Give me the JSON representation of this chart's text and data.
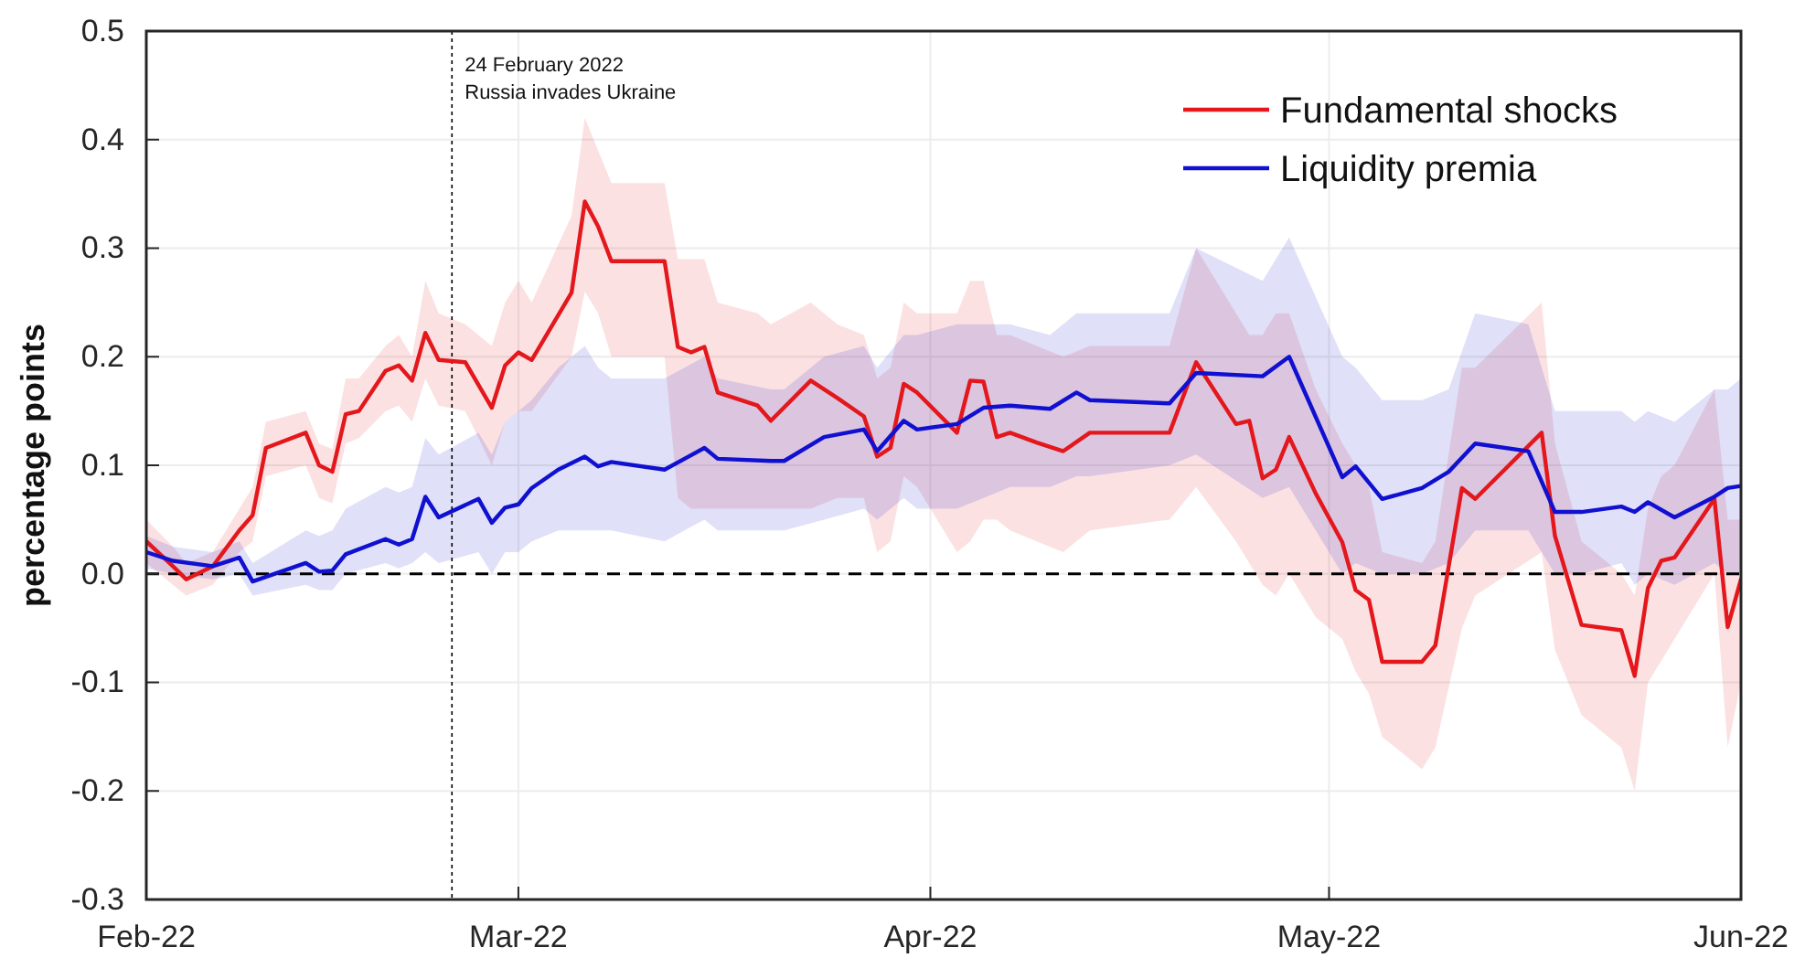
{
  "chart_data": {
    "type": "line",
    "ylabel": "percentage points",
    "xlim": [
      "2022-02-01",
      "2022-06-01"
    ],
    "xticks": [
      {
        "value": "2022-02-01",
        "label": "Feb-22"
      },
      {
        "value": "2022-03-01",
        "label": "Mar-22"
      },
      {
        "value": "2022-04-01",
        "label": "Apr-22"
      },
      {
        "value": "2022-05-01",
        "label": "May-22"
      },
      {
        "value": "2022-06-01",
        "label": "Jun-22"
      }
    ],
    "ylim": [
      -0.3,
      0.5
    ],
    "yticks": [
      {
        "value": -0.3,
        "label": "-0.3"
      },
      {
        "value": -0.2,
        "label": "-0.2"
      },
      {
        "value": -0.1,
        "label": "-0.1"
      },
      {
        "value": 0,
        "label": "0.0"
      },
      {
        "value": 0.1,
        "label": "0.1"
      },
      {
        "value": 0.2,
        "label": "0.2"
      },
      {
        "value": 0.3,
        "label": "0.3"
      },
      {
        "value": 0.4,
        "label": "0.4"
      },
      {
        "value": 0.5,
        "label": "0.5"
      }
    ],
    "grid": true,
    "legend": "top right",
    "line_style": "solid",
    "ref_lines": [
      {
        "axis": "y",
        "value": 0,
        "color": "#000000",
        "line_style": "dashed"
      },
      {
        "axis": "x",
        "value": "2022-02-24",
        "label": "24 February 2022\nRussia invades Ukraine",
        "color": "#000000",
        "line_style": "dotted"
      }
    ],
    "series": [
      {
        "name": "Fundamental shocks",
        "color": "#e3171c",
        "x": [
          "2022-02-01",
          "2022-02-03",
          "2022-02-04",
          "2022-02-06",
          "2022-02-08",
          "2022-02-09",
          "2022-02-10",
          "2022-02-13",
          "2022-02-14",
          "2022-02-15",
          "2022-02-16",
          "2022-02-17",
          "2022-02-19",
          "2022-02-20",
          "2022-02-21",
          "2022-02-22",
          "2022-02-23",
          "2022-02-25",
          "2022-02-27",
          "2022-02-28",
          "2022-03-01",
          "2022-03-02",
          "2022-03-05",
          "2022-03-06",
          "2022-03-07",
          "2022-03-08",
          "2022-03-12",
          "2022-03-13",
          "2022-03-14",
          "2022-03-15",
          "2022-03-16",
          "2022-03-19",
          "2022-03-20",
          "2022-03-23",
          "2022-03-25",
          "2022-03-27",
          "2022-03-28",
          "2022-03-29",
          "2022-03-30",
          "2022-03-31",
          "2022-04-03",
          "2022-04-04",
          "2022-04-05",
          "2022-04-06",
          "2022-04-07",
          "2022-04-09",
          "2022-04-11",
          "2022-04-13",
          "2022-04-19",
          "2022-04-21",
          "2022-04-24",
          "2022-04-25",
          "2022-04-26",
          "2022-04-27",
          "2022-04-28",
          "2022-04-30",
          "2022-05-02",
          "2022-05-03",
          "2022-05-04",
          "2022-05-05",
          "2022-05-08",
          "2022-05-09",
          "2022-05-11",
          "2022-05-12",
          "2022-05-17",
          "2022-05-18",
          "2022-05-20",
          "2022-05-23",
          "2022-05-24",
          "2022-05-25",
          "2022-05-26",
          "2022-05-27",
          "2022-05-30",
          "2022-05-31",
          "2022-06-01"
        ],
        "values": [
          0.03,
          0.007,
          -0.005,
          0.007,
          0.04,
          0.054,
          0.116,
          0.13,
          0.1,
          0.094,
          0.147,
          0.15,
          0.187,
          0.192,
          0.178,
          0.222,
          0.197,
          0.195,
          0.153,
          0.192,
          0.204,
          0.197,
          0.259,
          0.343,
          0.32,
          0.288,
          0.288,
          0.209,
          0.204,
          0.209,
          0.167,
          0.155,
          0.141,
          0.178,
          0.162,
          0.145,
          0.108,
          0.116,
          0.175,
          0.167,
          0.13,
          0.178,
          0.177,
          0.126,
          0.13,
          0.121,
          0.113,
          0.13,
          0.13,
          0.195,
          0.138,
          0.141,
          0.088,
          0.096,
          0.126,
          0.074,
          0.029,
          -0.015,
          -0.024,
          -0.081,
          -0.081,
          -0.066,
          0.079,
          0.069,
          0.13,
          0.035,
          -0.047,
          -0.052,
          -0.094,
          -0.013,
          0.012,
          0.015,
          0.069,
          -0.049,
          -0.005
        ],
        "lower": [
          0.01,
          -0.01,
          -0.02,
          -0.01,
          0.02,
          0.03,
          0.09,
          0.1,
          0.07,
          0.065,
          0.12,
          0.125,
          0.15,
          0.155,
          0.14,
          0.18,
          0.155,
          0.15,
          0.1,
          0.14,
          0.15,
          0.15,
          0.2,
          0.26,
          0.24,
          0.2,
          0.2,
          0.07,
          0.06,
          0.06,
          0.06,
          0.06,
          0.06,
          0.06,
          0.07,
          0.07,
          0.02,
          0.03,
          0.09,
          0.08,
          0.02,
          0.03,
          0.05,
          0.05,
          0.04,
          0.03,
          0.02,
          0.04,
          0.05,
          0.08,
          0.03,
          0.01,
          -0.01,
          -0.02,
          0.0,
          -0.04,
          -0.06,
          -0.09,
          -0.11,
          -0.15,
          -0.18,
          -0.16,
          -0.05,
          -0.02,
          0.02,
          -0.07,
          -0.13,
          -0.16,
          -0.2,
          -0.1,
          -0.08,
          -0.06,
          0.0,
          -0.16,
          -0.1
        ],
        "upper": [
          0.05,
          0.025,
          0.01,
          0.02,
          0.06,
          0.08,
          0.14,
          0.15,
          0.12,
          0.115,
          0.18,
          0.18,
          0.21,
          0.22,
          0.2,
          0.27,
          0.24,
          0.23,
          0.21,
          0.25,
          0.27,
          0.25,
          0.33,
          0.42,
          0.39,
          0.36,
          0.36,
          0.29,
          0.29,
          0.29,
          0.25,
          0.24,
          0.23,
          0.25,
          0.23,
          0.22,
          0.18,
          0.19,
          0.25,
          0.24,
          0.24,
          0.27,
          0.27,
          0.22,
          0.22,
          0.21,
          0.2,
          0.21,
          0.21,
          0.3,
          0.24,
          0.22,
          0.22,
          0.24,
          0.24,
          0.17,
          0.12,
          0.1,
          0.08,
          0.02,
          0.01,
          0.03,
          0.19,
          0.19,
          0.25,
          0.12,
          0.03,
          0.0,
          -0.02,
          0.06,
          0.09,
          0.1,
          0.17,
          0.05,
          0.05
        ]
      },
      {
        "name": "Liquidity premia",
        "color": "#1010d0",
        "x": [
          "2022-02-01",
          "2022-02-03",
          "2022-02-06",
          "2022-02-08",
          "2022-02-09",
          "2022-02-13",
          "2022-02-14",
          "2022-02-15",
          "2022-02-16",
          "2022-02-19",
          "2022-02-20",
          "2022-02-21",
          "2022-02-22",
          "2022-02-23",
          "2022-02-26",
          "2022-02-27",
          "2022-02-28",
          "2022-03-01",
          "2022-03-02",
          "2022-03-04",
          "2022-03-06",
          "2022-03-07",
          "2022-03-08",
          "2022-03-12",
          "2022-03-15",
          "2022-03-16",
          "2022-03-20",
          "2022-03-21",
          "2022-03-24",
          "2022-03-27",
          "2022-03-28",
          "2022-03-30",
          "2022-03-31",
          "2022-04-03",
          "2022-04-05",
          "2022-04-07",
          "2022-04-10",
          "2022-04-12",
          "2022-04-13",
          "2022-04-19",
          "2022-04-21",
          "2022-04-26",
          "2022-04-28",
          "2022-05-02",
          "2022-05-03",
          "2022-05-05",
          "2022-05-08",
          "2022-05-10",
          "2022-05-12",
          "2022-05-16",
          "2022-05-18",
          "2022-05-20",
          "2022-05-23",
          "2022-05-24",
          "2022-05-25",
          "2022-05-27",
          "2022-05-30",
          "2022-05-31",
          "2022-06-01"
        ],
        "values": [
          0.02,
          0.012,
          0.007,
          0.015,
          -0.007,
          0.01,
          0.002,
          0.003,
          0.018,
          0.032,
          0.027,
          0.032,
          0.071,
          0.052,
          0.069,
          0.047,
          0.061,
          0.064,
          0.079,
          0.096,
          0.108,
          0.099,
          0.103,
          0.096,
          0.116,
          0.106,
          0.104,
          0.104,
          0.126,
          0.133,
          0.113,
          0.141,
          0.133,
          0.138,
          0.153,
          0.155,
          0.152,
          0.167,
          0.16,
          0.157,
          0.185,
          0.182,
          0.2,
          0.089,
          0.099,
          0.069,
          0.079,
          0.094,
          0.12,
          0.113,
          0.057,
          0.057,
          0.062,
          0.057,
          0.066,
          0.052,
          0.071,
          0.079,
          0.081
        ],
        "lower": [
          0.005,
          0.0,
          -0.005,
          0.0,
          -0.02,
          -0.01,
          -0.015,
          -0.015,
          0.0,
          0.01,
          0.005,
          0.01,
          0.02,
          0.01,
          0.02,
          0.0,
          0.02,
          0.02,
          0.03,
          0.04,
          0.04,
          0.04,
          0.04,
          0.03,
          0.05,
          0.04,
          0.04,
          0.04,
          0.05,
          0.06,
          0.05,
          0.07,
          0.06,
          0.06,
          0.07,
          0.08,
          0.08,
          0.09,
          0.09,
          0.1,
          0.11,
          0.07,
          0.08,
          0.0,
          0.01,
          0.0,
          0.0,
          0.01,
          0.04,
          0.04,
          0.0,
          0.0,
          0.01,
          -0.01,
          0.0,
          -0.01,
          0.01,
          0.0,
          0.0
        ],
        "upper": [
          0.035,
          0.025,
          0.02,
          0.03,
          0.01,
          0.04,
          0.035,
          0.04,
          0.06,
          0.08,
          0.075,
          0.08,
          0.125,
          0.11,
          0.13,
          0.11,
          0.14,
          0.15,
          0.16,
          0.19,
          0.21,
          0.19,
          0.18,
          0.18,
          0.2,
          0.18,
          0.17,
          0.17,
          0.2,
          0.21,
          0.19,
          0.22,
          0.22,
          0.23,
          0.23,
          0.23,
          0.22,
          0.24,
          0.24,
          0.24,
          0.3,
          0.27,
          0.31,
          0.2,
          0.19,
          0.16,
          0.16,
          0.17,
          0.24,
          0.23,
          0.15,
          0.15,
          0.15,
          0.14,
          0.15,
          0.14,
          0.17,
          0.17,
          0.18
        ]
      }
    ]
  }
}
